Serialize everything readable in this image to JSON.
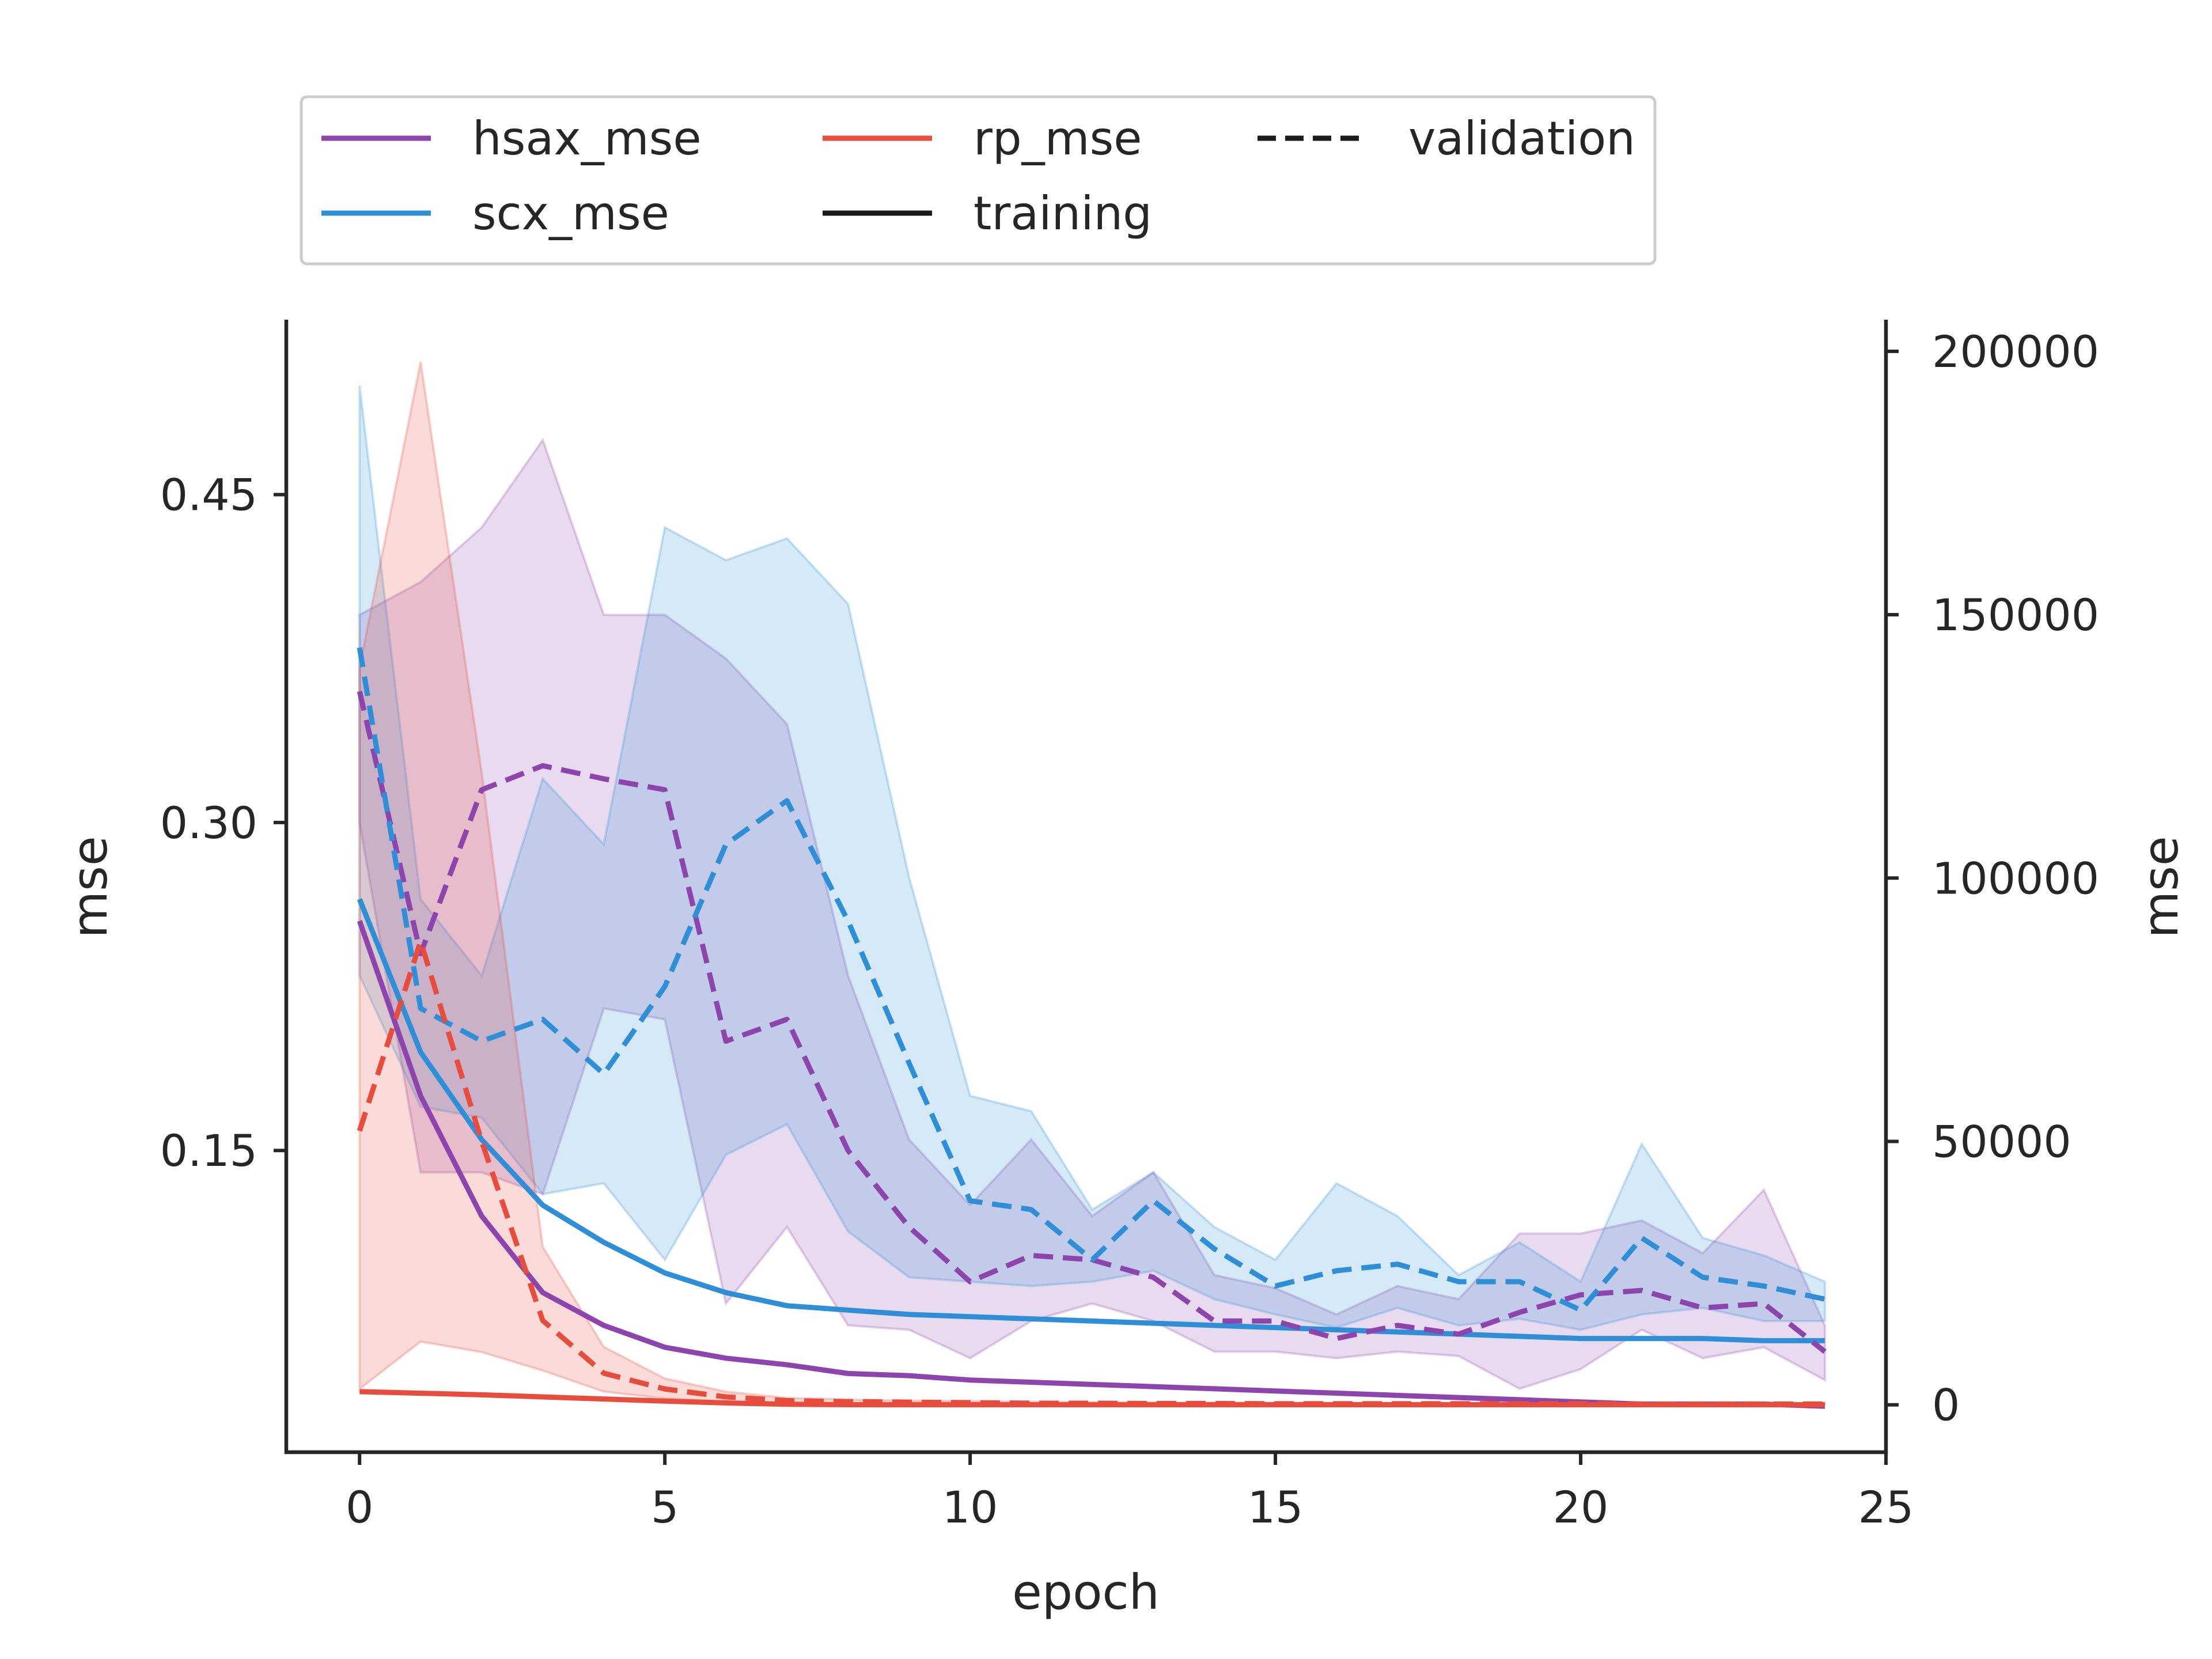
{
  "chart_data": {
    "type": "line",
    "xlabel": "epoch",
    "ylabel_left": "mse",
    "ylabel_right": "mse",
    "xlim": [
      -1.2,
      25
    ],
    "ylim_left": [
      0.012,
      0.53
    ],
    "ylim_right": [
      -9000,
      206000
    ],
    "x_ticks": [
      "0",
      "5",
      "10",
      "15",
      "20",
      "25"
    ],
    "y_ticks_left": [
      "0.15",
      "0.30",
      "0.45"
    ],
    "y_ticks_right": [
      "0",
      "50000",
      "100000",
      "150000",
      "200000"
    ],
    "legend": {
      "placement": "top",
      "entries": [
        "hsax_mse",
        "rp_mse",
        "validation",
        "scx_mse",
        "training"
      ]
    },
    "colors": {
      "hsax_mse": "#8e44ad",
      "scx_mse": "#2e8fd8",
      "rp_mse": "#e74c3c",
      "legend_style": "#1a1a1a"
    },
    "x": [
      0,
      1,
      2,
      3,
      4,
      5,
      6,
      7,
      8,
      9,
      10,
      11,
      12,
      13,
      14,
      15,
      16,
      17,
      18,
      19,
      20,
      21,
      22,
      23,
      24
    ],
    "series": [
      {
        "name": "hsax_mse",
        "phase": "validation",
        "axis": "left",
        "style": "dashed",
        "values": [
          0.36,
          0.24,
          0.315,
          0.326,
          0.32,
          0.315,
          0.2,
          0.21,
          0.15,
          0.115,
          0.09,
          0.102,
          0.1,
          0.092,
          0.072,
          0.072,
          0.064,
          0.07,
          0.066,
          0.076,
          0.084,
          0.086,
          0.078,
          0.08,
          0.058
        ],
        "band_low": [
          0.3,
          0.14,
          0.14,
          0.13,
          0.215,
          0.21,
          0.08,
          0.115,
          0.07,
          0.068,
          0.055,
          0.072,
          0.08,
          0.072,
          0.058,
          0.058,
          0.055,
          0.058,
          0.056,
          0.041,
          0.05,
          0.068,
          0.055,
          0.06,
          0.045
        ],
        "band_high": [
          0.395,
          0.41,
          0.435,
          0.475,
          0.395,
          0.395,
          0.375,
          0.345,
          0.23,
          0.155,
          0.125,
          0.155,
          0.12,
          0.14,
          0.093,
          0.087,
          0.075,
          0.088,
          0.082,
          0.112,
          0.112,
          0.118,
          0.103,
          0.132,
          0.07
        ]
      },
      {
        "name": "scx_mse",
        "phase": "validation",
        "axis": "left",
        "style": "dashed",
        "values": [
          0.38,
          0.215,
          0.2,
          0.21,
          0.185,
          0.225,
          0.29,
          0.31,
          0.255,
          0.19,
          0.127,
          0.123,
          0.1,
          0.127,
          0.105,
          0.088,
          0.095,
          0.098,
          0.09,
          0.09,
          0.077,
          0.11,
          0.092,
          0.088,
          0.082
        ],
        "band_low": [
          0.23,
          0.17,
          0.165,
          0.13,
          0.135,
          0.1,
          0.148,
          0.162,
          0.113,
          0.092,
          0.09,
          0.088,
          0.09,
          0.095,
          0.082,
          0.075,
          0.069,
          0.078,
          0.07,
          0.073,
          0.068,
          0.075,
          0.078,
          0.072,
          0.072
        ],
        "band_high": [
          0.5,
          0.265,
          0.23,
          0.32,
          0.29,
          0.435,
          0.42,
          0.43,
          0.4,
          0.275,
          0.175,
          0.168,
          0.123,
          0.14,
          0.115,
          0.1,
          0.135,
          0.12,
          0.093,
          0.108,
          0.09,
          0.153,
          0.11,
          0.102,
          0.09
        ]
      },
      {
        "name": "hsax_mse",
        "phase": "training",
        "axis": "left",
        "style": "solid",
        "values": [
          0.255,
          0.175,
          0.12,
          0.085,
          0.07,
          0.06,
          0.055,
          0.052,
          0.048,
          0.047,
          0.045,
          0.044,
          0.043,
          0.042,
          0.041,
          0.04,
          0.039,
          0.038,
          0.037,
          0.036,
          0.035,
          0.034,
          0.034,
          0.034,
          0.033
        ]
      },
      {
        "name": "scx_mse",
        "phase": "training",
        "axis": "left",
        "style": "solid",
        "values": [
          0.265,
          0.195,
          0.155,
          0.125,
          0.108,
          0.094,
          0.085,
          0.079,
          0.077,
          0.075,
          0.074,
          0.073,
          0.072,
          0.071,
          0.07,
          0.069,
          0.068,
          0.067,
          0.066,
          0.065,
          0.064,
          0.064,
          0.064,
          0.063,
          0.063
        ]
      },
      {
        "name": "rp_mse",
        "phase": "training",
        "axis": "right",
        "style": "solid",
        "values": [
          2500,
          2200,
          1900,
          1500,
          1100,
          700,
          350,
          100,
          20,
          10,
          8,
          6,
          5,
          4,
          4,
          3,
          3,
          3,
          3,
          3,
          2,
          2,
          2,
          2,
          2
        ]
      },
      {
        "name": "rp_mse",
        "phase": "validation",
        "axis": "right",
        "style": "dashed",
        "values": [
          52000,
          88000,
          50000,
          16000,
          6000,
          3000,
          1500,
          800,
          600,
          500,
          400,
          300,
          300,
          250,
          250,
          200,
          200,
          200,
          200,
          200,
          200,
          150,
          150,
          150,
          150
        ],
        "band_low": [
          3000,
          12000,
          10000,
          6500,
          2500,
          1200,
          600,
          300,
          200,
          150,
          100,
          100,
          100,
          100,
          100,
          100,
          100,
          100,
          100,
          100,
          100,
          100,
          100,
          100,
          100
        ],
        "band_high": [
          140000,
          198000,
          120000,
          30000,
          11000,
          5000,
          2500,
          1300,
          1000,
          800,
          700,
          600,
          500,
          450,
          400,
          400,
          350,
          350,
          350,
          350,
          300,
          300,
          300,
          300,
          300
        ]
      }
    ]
  }
}
